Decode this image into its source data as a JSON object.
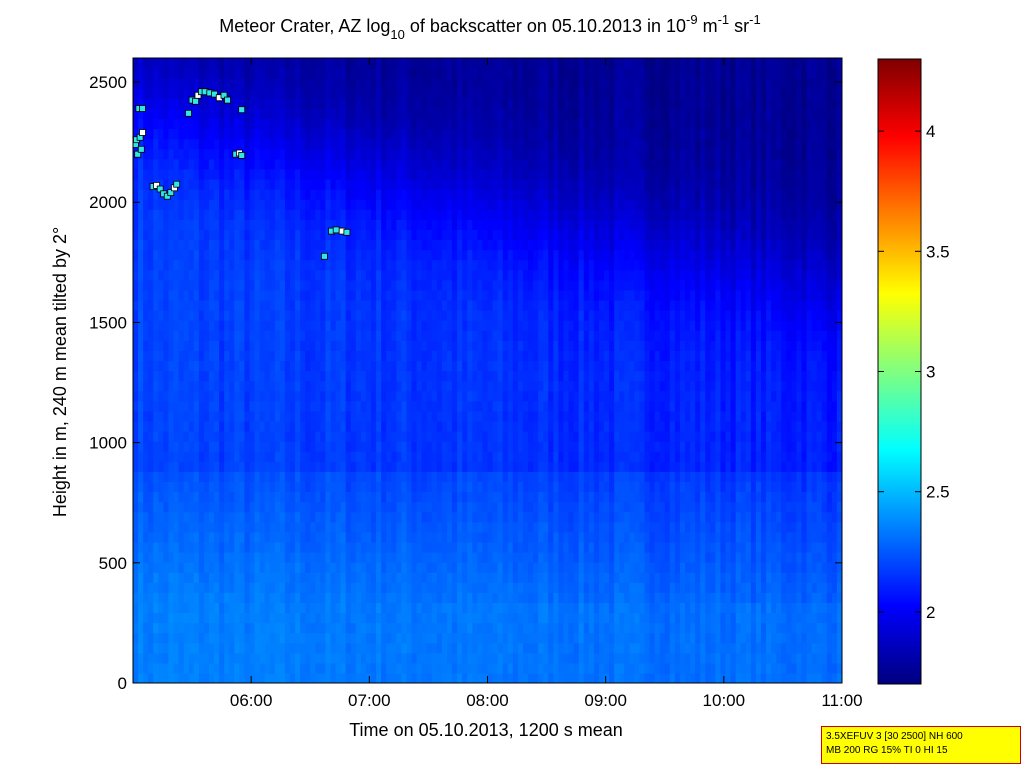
{
  "chart_data": {
    "type": "heatmap",
    "title": {
      "prefix": "Meteor Crater, AZ log",
      "log_base": "10",
      "middle": " of backscatter on 05.10.2013 in 10",
      "exp1": "-9",
      "unit1": " m",
      "exp2": "-1",
      "unit2": " sr",
      "exp3": "-1"
    },
    "xlabel": "Time on 05.10.2013, 1200 s mean",
    "ylabel": "Height in m, 240 m mean tilted by 2°",
    "x_ticks": [
      "06:00",
      "07:00",
      "08:00",
      "09:00",
      "10:00",
      "11:00"
    ],
    "x_tick_hours": [
      6,
      7,
      8,
      9,
      10,
      11
    ],
    "xlim_hours": [
      5.0,
      11.0
    ],
    "y_ticks": [
      0,
      500,
      1000,
      1500,
      2000,
      2500
    ],
    "ylim": [
      0,
      2600
    ],
    "colorbar": {
      "ticks": [
        2,
        2.5,
        3,
        3.5,
        4
      ],
      "tick_labels": [
        "2",
        "2.5",
        "3",
        "3.5",
        "4"
      ],
      "range": [
        1.7,
        4.3
      ],
      "colormap": "jet"
    },
    "field_description": {
      "surface_value": 2.35,
      "mid_value": 2.2,
      "upper_value": 1.75
    },
    "cloud_points": [
      {
        "t": 5.02,
        "h": 2240
      },
      {
        "t": 5.03,
        "h": 2260
      },
      {
        "t": 5.04,
        "h": 2200
      },
      {
        "t": 5.06,
        "h": 2270
      },
      {
        "t": 5.08,
        "h": 2290
      },
      {
        "t": 5.07,
        "h": 2220
      },
      {
        "t": 5.05,
        "h": 2390
      },
      {
        "t": 5.08,
        "h": 2390
      },
      {
        "t": 5.17,
        "h": 2065
      },
      {
        "t": 5.2,
        "h": 2070
      },
      {
        "t": 5.23,
        "h": 2055
      },
      {
        "t": 5.26,
        "h": 2035
      },
      {
        "t": 5.29,
        "h": 2025
      },
      {
        "t": 5.32,
        "h": 2040
      },
      {
        "t": 5.35,
        "h": 2060
      },
      {
        "t": 5.37,
        "h": 2075
      },
      {
        "t": 5.47,
        "h": 2370
      },
      {
        "t": 5.5,
        "h": 2425
      },
      {
        "t": 5.53,
        "h": 2420
      },
      {
        "t": 5.55,
        "h": 2445
      },
      {
        "t": 5.58,
        "h": 2460
      },
      {
        "t": 5.61,
        "h": 2460
      },
      {
        "t": 5.65,
        "h": 2455
      },
      {
        "t": 5.69,
        "h": 2450
      },
      {
        "t": 5.73,
        "h": 2435
      },
      {
        "t": 5.77,
        "h": 2445
      },
      {
        "t": 5.8,
        "h": 2425
      },
      {
        "t": 5.92,
        "h": 2385
      },
      {
        "t": 5.87,
        "h": 2200
      },
      {
        "t": 5.9,
        "h": 2205
      },
      {
        "t": 5.92,
        "h": 2195
      },
      {
        "t": 6.62,
        "h": 1775
      },
      {
        "t": 6.68,
        "h": 1880
      },
      {
        "t": 6.72,
        "h": 1885
      },
      {
        "t": 6.77,
        "h": 1880
      },
      {
        "t": 6.81,
        "h": 1875
      }
    ]
  },
  "info_box": {
    "line1": "3.5XEFUV 3 [30 2500] NH 600",
    "line2": "MB 200 RG 15% TI 0 HI 15"
  }
}
